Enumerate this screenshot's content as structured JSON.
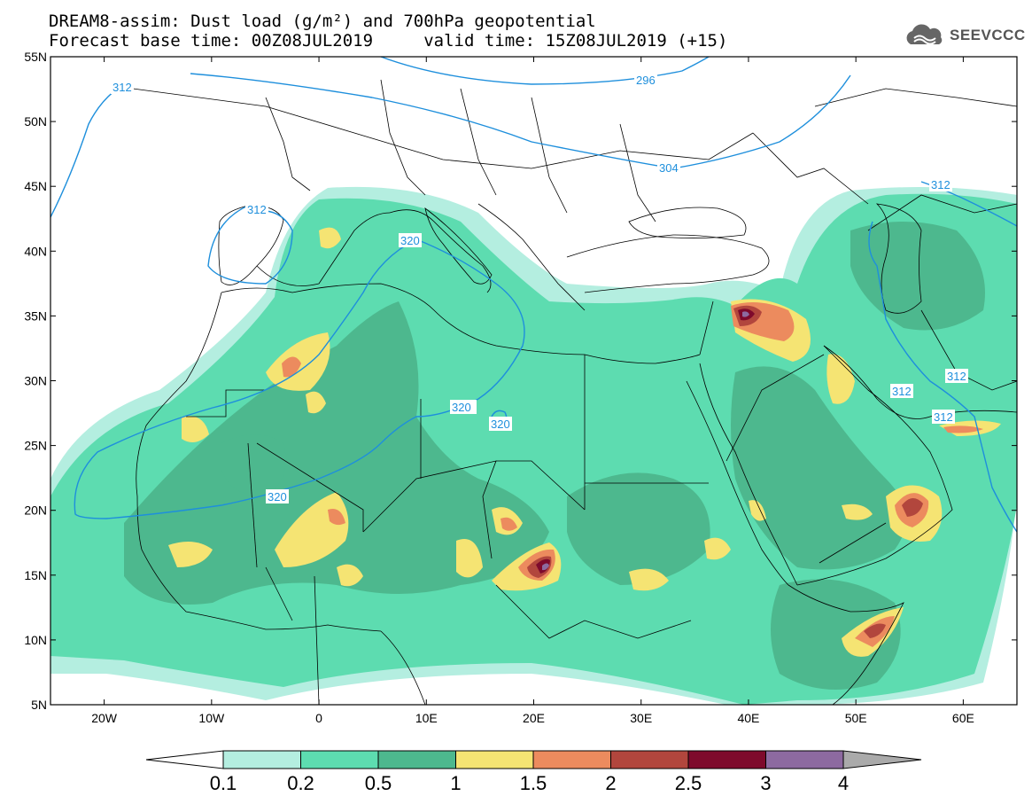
{
  "title_line1": "DREAM8-assim: Dust load (g/m²) and 700hPa geopotential",
  "title_line2": "Forecast base time: 00Z08JUL2019     valid time: 15Z08JUL2019 (+15)",
  "logo": {
    "text": "SEEVCCC",
    "icon": "cloud-icon"
  },
  "axes": {
    "lat_labels": [
      "55N",
      "50N",
      "45N",
      "40N",
      "35N",
      "30N",
      "25N",
      "20N",
      "15N",
      "10N",
      "5N"
    ],
    "lon_labels": [
      "20W",
      "10W",
      "0",
      "10E",
      "20E",
      "30E",
      "40E",
      "50E",
      "60E"
    ],
    "lon_range": [
      -25,
      65
    ],
    "lat_range": [
      5,
      55
    ]
  },
  "contours": {
    "color": "#1e8fdc",
    "labels": [
      "312",
      "296",
      "304",
      "312",
      "320",
      "312",
      "320",
      "320",
      "320",
      "312",
      "312",
      "312"
    ]
  },
  "colorbar": {
    "tick_labels": [
      "0.1",
      "0.2",
      "0.5",
      "1",
      "1.5",
      "2",
      "2.5",
      "3",
      "4"
    ],
    "colors": [
      "#ffffff",
      "#b4eee0",
      "#5ddcb0",
      "#4db88e",
      "#f5e473",
      "#ec8b5e",
      "#b2463d",
      "#7e0a2c",
      "#8d6aa0",
      "#aaaaaa"
    ]
  }
}
